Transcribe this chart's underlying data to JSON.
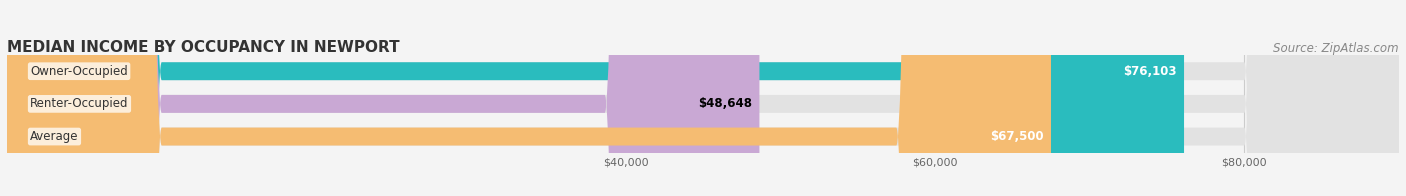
{
  "title": "MEDIAN INCOME BY OCCUPANCY IN NEWPORT",
  "source": "Source: ZipAtlas.com",
  "categories": [
    "Owner-Occupied",
    "Renter-Occupied",
    "Average"
  ],
  "values": [
    76103,
    48648,
    67500
  ],
  "bar_colors": [
    "#2abcbe",
    "#c9a8d4",
    "#f5bc72"
  ],
  "label_colors": [
    "white",
    "black",
    "white"
  ],
  "value_labels": [
    "$76,103",
    "$48,648",
    "$67,500"
  ],
  "xlim_min": 0,
  "xlim_max": 90000,
  "xticks": [
    40000,
    60000,
    80000
  ],
  "xtick_labels": [
    "$40,000",
    "$60,000",
    "$80,000"
  ],
  "background_color": "#f4f4f4",
  "bar_bg_color": "#e2e2e2",
  "title_fontsize": 11,
  "label_fontsize": 8.5,
  "value_fontsize": 8.5,
  "source_fontsize": 8.5,
  "bar_height": 0.55
}
